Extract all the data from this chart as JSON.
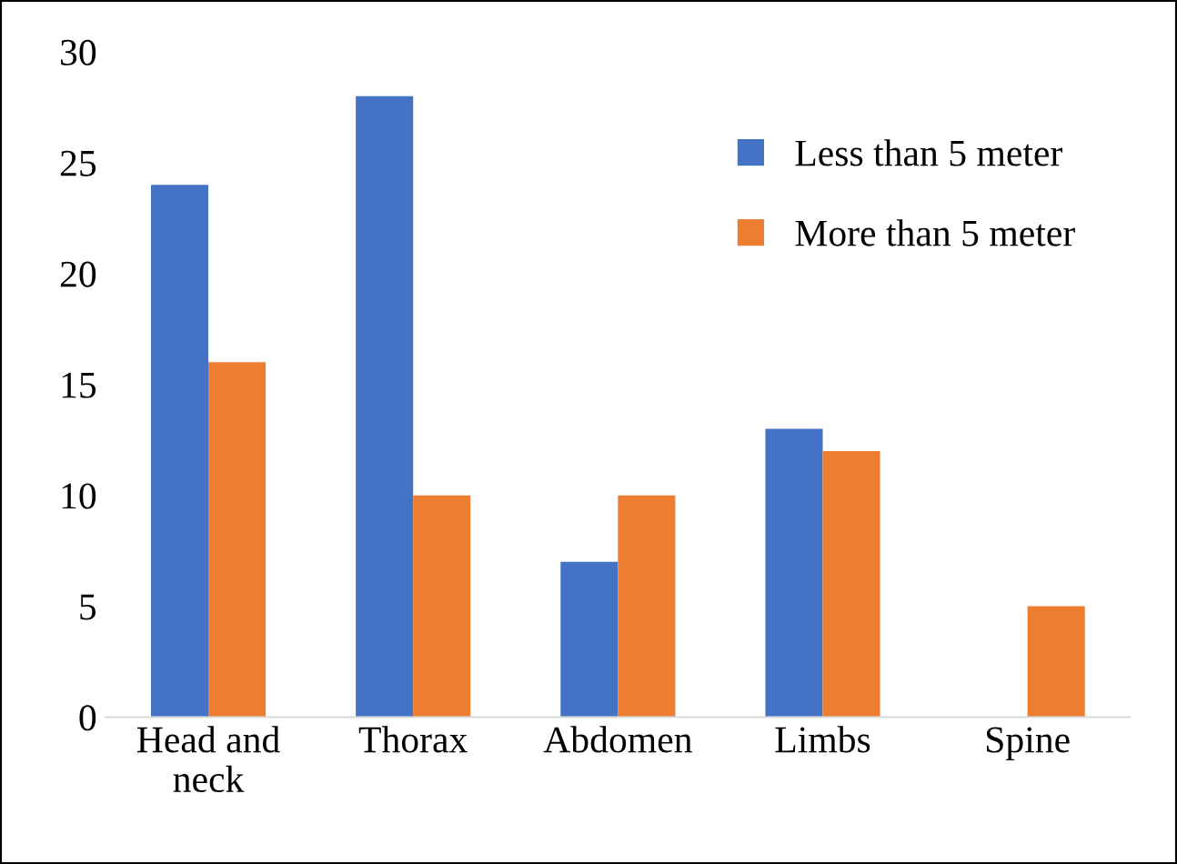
{
  "chart_data": {
    "type": "bar",
    "categories": [
      "Head and\nneck",
      "Thorax",
      "Abdomen",
      "Limbs",
      "Spine"
    ],
    "series": [
      {
        "name": "Less than 5 meter",
        "color": "#4472c4",
        "values": [
          24,
          28,
          7,
          13,
          0
        ]
      },
      {
        "name": "More than 5 meter",
        "color": "#ed7d31",
        "values": [
          16,
          10,
          10,
          12,
          5
        ]
      }
    ],
    "ylim": [
      0,
      30
    ],
    "yticks": [
      0,
      5,
      10,
      15,
      20,
      25,
      30
    ],
    "grid": false,
    "legend": "top right"
  }
}
